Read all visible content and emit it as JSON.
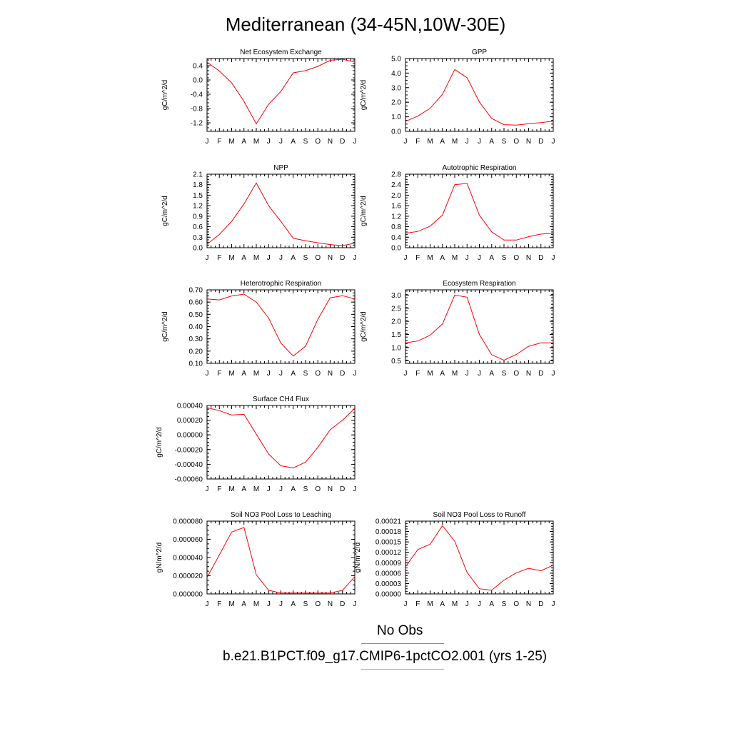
{
  "title": "Mediterranean (34-45N,10W-30E)",
  "legend": {
    "items": [
      {
        "label": "No Obs",
        "color": "#8080ff"
      },
      {
        "label": "b.e21.B1PCT.f09_g17.CMIP6-1pctCO2.001 (yrs 1-25)",
        "color": "#ff8080"
      }
    ]
  },
  "chart_data": [
    {
      "type": "line",
      "title": "Net Ecosystem Exchange",
      "ylabel": "gC/m^2/d",
      "categories": [
        "J",
        "F",
        "M",
        "A",
        "M",
        "J",
        "J",
        "A",
        "S",
        "O",
        "N",
        "D",
        "J"
      ],
      "ylim": [
        -1.44,
        0.6
      ],
      "yticks": [
        -1.2,
        -0.8,
        -0.4,
        0.0,
        0.4
      ],
      "ytick_labels": [
        "-1.2",
        "-0.8",
        "-0.4",
        "0.0",
        "0.4"
      ],
      "series": [
        {
          "color": "#ff0000",
          "values": [
            0.5,
            0.25,
            -0.08,
            -0.6,
            -1.23,
            -0.68,
            -0.32,
            0.2,
            0.26,
            0.38,
            0.55,
            0.58,
            0.5
          ]
        }
      ]
    },
    {
      "type": "line",
      "title": "GPP",
      "ylabel": "gC/m^2/d",
      "categories": [
        "J",
        "F",
        "M",
        "A",
        "M",
        "J",
        "J",
        "A",
        "S",
        "O",
        "N",
        "D",
        "J"
      ],
      "ylim": [
        0.0,
        5.0
      ],
      "yticks": [
        0.0,
        1.0,
        2.0,
        3.0,
        4.0,
        5.0
      ],
      "ytick_labels": [
        "0.0",
        "1.0",
        "2.0",
        "3.0",
        "4.0",
        "5.0"
      ],
      "series": [
        {
          "color": "#ff0000",
          "values": [
            0.68,
            1.05,
            1.58,
            2.55,
            4.25,
            3.68,
            2.02,
            0.88,
            0.46,
            0.43,
            0.52,
            0.6,
            0.7
          ]
        }
      ]
    },
    {
      "type": "line",
      "title": "NPP",
      "ylabel": "gC/m^2/d",
      "categories": [
        "J",
        "F",
        "M",
        "A",
        "M",
        "J",
        "J",
        "A",
        "S",
        "O",
        "N",
        "D",
        "J"
      ],
      "ylim": [
        0.0,
        2.1
      ],
      "yticks": [
        0.0,
        0.3,
        0.6,
        0.9,
        1.2,
        1.5,
        1.8,
        2.1
      ],
      "ytick_labels": [
        "0.0",
        "0.3",
        "0.6",
        "0.9",
        "1.2",
        "1.5",
        "1.8",
        "2.1"
      ],
      "series": [
        {
          "color": "#ff0000",
          "values": [
            0.1,
            0.38,
            0.75,
            1.25,
            1.85,
            1.2,
            0.75,
            0.27,
            0.2,
            0.14,
            0.09,
            0.06,
            0.13
          ]
        }
      ]
    },
    {
      "type": "line",
      "title": "Autotrophic Respiration",
      "ylabel": "gC/m^2/d",
      "categories": [
        "J",
        "F",
        "M",
        "A",
        "M",
        "J",
        "J",
        "A",
        "S",
        "O",
        "N",
        "D",
        "J"
      ],
      "ylim": [
        0.0,
        2.8
      ],
      "yticks": [
        0.0,
        0.4,
        0.8,
        1.2,
        1.6,
        2.0,
        2.4,
        2.8
      ],
      "ytick_labels": [
        "0.0",
        "0.4",
        "0.8",
        "1.2",
        "1.6",
        "2.0",
        "2.4",
        "2.8"
      ],
      "series": [
        {
          "color": "#ff0000",
          "values": [
            0.55,
            0.62,
            0.82,
            1.24,
            2.4,
            2.45,
            1.24,
            0.6,
            0.29,
            0.29,
            0.42,
            0.52,
            0.55
          ]
        }
      ]
    },
    {
      "type": "line",
      "title": "Heterotrophic Respiration",
      "ylabel": "gC/m^2/d",
      "categories": [
        "J",
        "F",
        "M",
        "A",
        "M",
        "J",
        "J",
        "A",
        "S",
        "O",
        "N",
        "D",
        "J"
      ],
      "ylim": [
        0.1,
        0.7
      ],
      "yticks": [
        0.1,
        0.2,
        0.3,
        0.4,
        0.5,
        0.6,
        0.7
      ],
      "ytick_labels": [
        "0.10",
        "0.20",
        "0.30",
        "0.40",
        "0.50",
        "0.60",
        "0.70"
      ],
      "series": [
        {
          "color": "#ff0000",
          "values": [
            0.625,
            0.618,
            0.65,
            0.665,
            0.6,
            0.47,
            0.265,
            0.16,
            0.24,
            0.46,
            0.635,
            0.652,
            0.626
          ]
        }
      ]
    },
    {
      "type": "line",
      "title": "Ecosystem Respiration",
      "ylabel": "gC/m^2/d",
      "categories": [
        "J",
        "F",
        "M",
        "A",
        "M",
        "J",
        "J",
        "A",
        "S",
        "O",
        "N",
        "D",
        "J"
      ],
      "ylim": [
        0.4,
        3.2
      ],
      "yticks": [
        0.5,
        1.0,
        1.5,
        2.0,
        2.5,
        3.0
      ],
      "ytick_labels": [
        "0.5",
        "1.0",
        "1.5",
        "2.0",
        "2.5",
        "3.0"
      ],
      "series": [
        {
          "color": "#ff0000",
          "values": [
            1.18,
            1.25,
            1.47,
            1.9,
            3.0,
            2.92,
            1.5,
            0.73,
            0.52,
            0.74,
            1.05,
            1.18,
            1.18
          ]
        }
      ]
    },
    {
      "type": "line",
      "title": "Surface CH4 Flux",
      "ylabel": "gC/m^2/d",
      "categories": [
        "J",
        "F",
        "M",
        "A",
        "M",
        "J",
        "J",
        "A",
        "S",
        "O",
        "N",
        "D",
        "J"
      ],
      "ylim": [
        -0.0006,
        0.0004
      ],
      "yticks": [
        -0.0006,
        -0.0004,
        -0.0002,
        0.0,
        0.0002,
        0.0004
      ],
      "ytick_labels": [
        "-0.00060",
        "-0.00040",
        "-0.00020",
        "0.00000",
        "0.00020",
        "0.00040"
      ],
      "series": [
        {
          "color": "#ff0000",
          "values": [
            0.00037,
            0.00033,
            0.00027,
            0.00028,
            1e-05,
            -0.00026,
            -0.00042,
            -0.00045,
            -0.00037,
            -0.00017,
            7e-05,
            0.0002,
            0.00036
          ]
        }
      ]
    },
    {
      "type": "line",
      "title": "Soil NO3 Pool Loss to Leaching",
      "ylabel": "gN/m^2/d",
      "categories": [
        "J",
        "F",
        "M",
        "A",
        "M",
        "J",
        "J",
        "A",
        "S",
        "O",
        "N",
        "D",
        "J"
      ],
      "ylim": [
        0.0,
        8e-05
      ],
      "yticks": [
        0.0,
        2e-05,
        4e-05,
        6e-05,
        8e-05
      ],
      "ytick_labels": [
        "0.000000",
        "0.000020",
        "0.000040",
        "0.000060",
        "0.000080"
      ],
      "series": [
        {
          "color": "#ff0000",
          "values": [
            1.8e-05,
            4.3e-05,
            6.8e-05,
            7.3e-05,
            2.1e-05,
            4e-06,
            1e-06,
            1e-06,
            1e-06,
            1e-06,
            1e-06,
            4e-06,
            1.9e-05
          ]
        }
      ]
    },
    {
      "type": "line",
      "title": "Soil NO3 Pool Loss to Runoff",
      "ylabel": "gN/m^2/d",
      "categories": [
        "J",
        "F",
        "M",
        "A",
        "M",
        "J",
        "J",
        "A",
        "S",
        "O",
        "N",
        "D",
        "J"
      ],
      "ylim": [
        0.0,
        0.00021
      ],
      "yticks": [
        0.0,
        3e-05,
        6e-05,
        9e-05,
        0.00012,
        0.00015,
        0.00018,
        0.00021
      ],
      "ytick_labels": [
        "0.00000",
        "0.00003",
        "0.00006",
        "0.00009",
        "0.00012",
        "0.00015",
        "0.00018",
        "0.00021"
      ],
      "series": [
        {
          "color": "#ff0000",
          "values": [
            7.8e-05,
            0.000128,
            0.000143,
            0.000197,
            0.000152,
            6.2e-05,
            1.5e-05,
            1.1e-05,
            4e-05,
            6.1e-05,
            7.4e-05,
            6.7e-05,
            8.3e-05
          ]
        }
      ]
    }
  ]
}
